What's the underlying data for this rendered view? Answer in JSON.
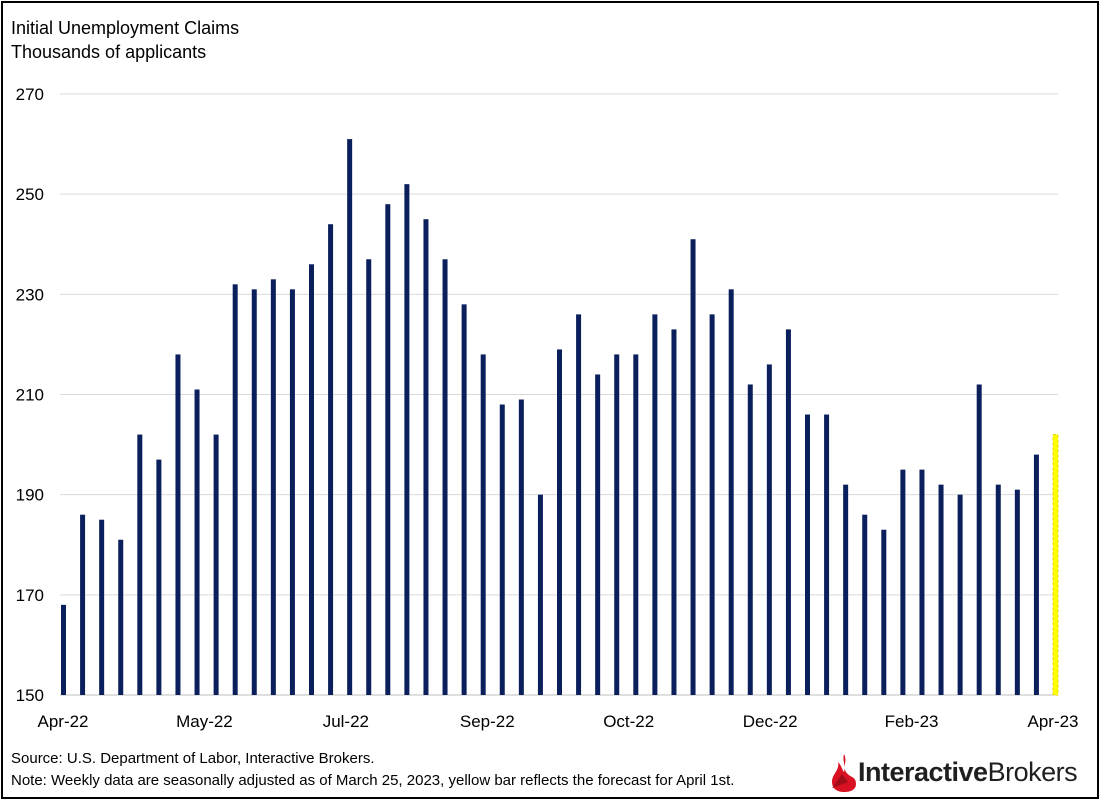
{
  "header": {
    "title": "Initial Unemployment Claims",
    "subtitle": "Thousands of applicants"
  },
  "footer": {
    "source": "Source: U.S. Department of Labor, Interactive Brokers.",
    "note": "Note: Weekly data are seasonally adjusted as of March 25, 2023, yellow bar reflects the forecast for April 1st."
  },
  "logo": {
    "part1": "Interactive",
    "part2": "Brokers"
  },
  "colors": {
    "bar": "#0b1f5c",
    "forecast": "#ffff00",
    "grid": "#d9d9d9"
  },
  "chart_data": {
    "type": "bar",
    "title": "Initial Unemployment Claims",
    "subtitle": "Thousands of applicants",
    "xlabel": "",
    "ylabel": "",
    "ylim": [
      150,
      270
    ],
    "yticks": [
      150,
      170,
      190,
      210,
      230,
      250,
      270
    ],
    "xtick_labels": [
      "Apr-22",
      "May-22",
      "Jul-22",
      "Sep-22",
      "Oct-22",
      "Dec-22",
      "Feb-23",
      "Apr-23"
    ],
    "grid": true,
    "values": [
      168,
      186,
      185,
      181,
      202,
      197,
      218,
      211,
      202,
      232,
      231,
      233,
      231,
      236,
      244,
      261,
      237,
      248,
      252,
      245,
      237,
      228,
      218,
      208,
      209,
      190,
      219,
      226,
      214,
      218,
      218,
      226,
      223,
      241,
      226,
      231,
      212,
      216,
      223,
      206,
      206,
      192,
      186,
      183,
      195,
      195,
      192,
      190,
      212,
      192,
      191,
      198,
      202
    ],
    "forecast_last": true
  }
}
